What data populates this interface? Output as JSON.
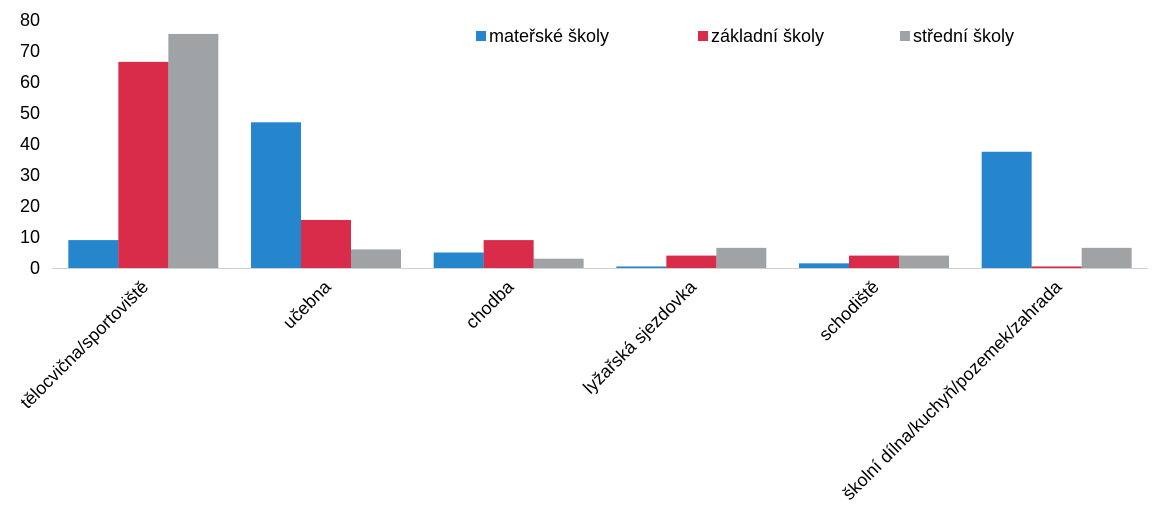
{
  "chart_data": {
    "type": "bar",
    "categories": [
      "tělocvična/sportoviště",
      "učebna",
      "chodba",
      "lyžařská sjezdovka",
      "schodiště",
      "školní dílna/kuchyň/pozemek/zahrada"
    ],
    "series": [
      {
        "name": "mateřské školy",
        "color": "#2585CD",
        "values": [
          9,
          47,
          5,
          0.5,
          1.5,
          37.5
        ]
      },
      {
        "name": "základní školy",
        "color": "#D92B4A",
        "values": [
          66.5,
          15.5,
          9,
          4,
          4,
          0.5
        ]
      },
      {
        "name": "střední školy",
        "color": "#A0A3A5",
        "values": [
          75.5,
          6,
          3,
          6.5,
          4,
          6.5
        ]
      }
    ],
    "ylim": [
      0,
      80
    ],
    "yticks": [
      0,
      10,
      20,
      30,
      40,
      50,
      60,
      70,
      80
    ],
    "grid": false,
    "legend": "top-right"
  }
}
